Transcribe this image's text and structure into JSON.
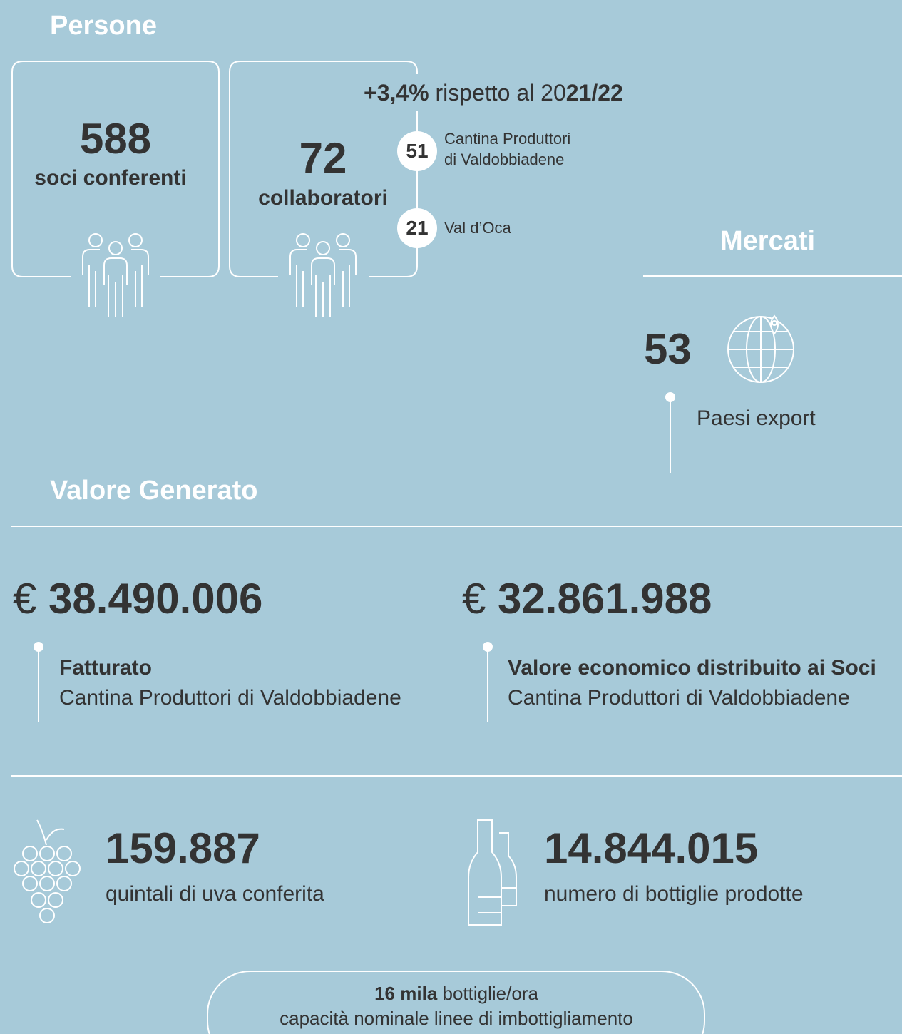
{
  "persone": {
    "title": "Persone",
    "soci": {
      "number": "588",
      "label": "soci conferenti"
    },
    "collaboratori": {
      "number": "72",
      "label": "collaboratori",
      "change": {
        "pct": "+3,4%",
        "text": "rispetto al 20",
        "years": "21/22"
      },
      "breakdown": [
        {
          "number": "51",
          "label": [
            "Cantina Produttori",
            "di Valdobbiadene"
          ]
        },
        {
          "number": "21",
          "label": [
            "Val d’Oca"
          ]
        }
      ]
    }
  },
  "mercati": {
    "title": "Mercati",
    "number": "53",
    "label": "Paesi export"
  },
  "valore": {
    "title": "Valore Generato",
    "items": [
      {
        "currency": "€",
        "amount": "38.490.006",
        "title": "Fatturato",
        "subtitle": "Cantina Produttori di Valdobbiadene"
      },
      {
        "currency": "€",
        "amount": "32.861.988",
        "title": "Valore economico distribuito ai Soci",
        "subtitle": "Cantina Produttori di Valdobbiadene"
      }
    ]
  },
  "produzione": [
    {
      "number": "159.887",
      "label": "quintali di uva conferita"
    },
    {
      "number": "14.844.015",
      "label": "numero di bottiglie prodotte"
    }
  ],
  "capacita": {
    "bold": "16 mila",
    "text": "bottiglie/ora",
    "subtitle": "capacità nominale linee di imbottigliamento"
  }
}
